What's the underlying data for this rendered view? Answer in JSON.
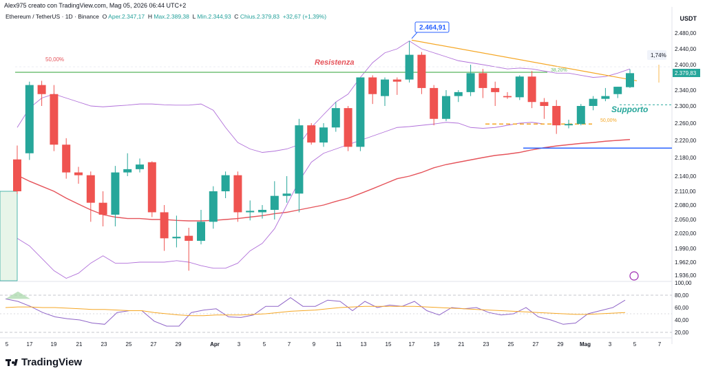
{
  "header": {
    "author_line": "Alex975 creato con TradingView.com, Mag 05, 2026 06:44 UTC+2",
    "symbol": "Ethereum / TetherUS · 1D · Binance",
    "o_label": "O",
    "o_value": "Aper.2.347,17",
    "h_label": "H",
    "h_value": "Max.2.389,38",
    "l_label": "L",
    "l_value": "Min.2.344,93",
    "c_label": "C",
    "c_value": "Chius.2.379,83",
    "change": "+32,67 (+1,39%)"
  },
  "currency": "USDT",
  "footer": {
    "brand": "TradingView"
  },
  "chart_data": {
    "type": "candlestick",
    "x_ticks": [
      "5",
      "17",
      "19",
      "21",
      "23",
      "25",
      "27",
      "29",
      "Apr",
      "3",
      "5",
      "7",
      "9",
      "11",
      "13",
      "15",
      "17",
      "19",
      "21",
      "23",
      "25",
      "27",
      "29",
      "Mag",
      "3",
      "5",
      "7"
    ],
    "y_ticks": [
      "2.480,00",
      "2.440,00",
      "2.400,00",
      "2.340,00",
      "2.300,00",
      "2.260,00",
      "2.220,00",
      "2.180,00",
      "2.140,00",
      "2.110,00",
      "2.080,00",
      "2.050,00",
      "2.020,00",
      "1.990,00",
      "1.962,00",
      "1.936,00"
    ],
    "candles": [
      [
        2176,
        2208,
        2104,
        2110
      ],
      [
        2190,
        2360,
        2175,
        2352
      ],
      [
        2352,
        2362,
        2300,
        2330
      ],
      [
        2330,
        2352,
        2195,
        2210
      ],
      [
        2210,
        2225,
        2135,
        2148
      ],
      [
        2148,
        2160,
        2125,
        2142
      ],
      [
        2142,
        2150,
        2045,
        2085
      ],
      [
        2085,
        2110,
        2035,
        2060
      ],
      [
        2060,
        2162,
        2035,
        2148
      ],
      [
        2148,
        2190,
        2140,
        2155
      ],
      [
        2155,
        2178,
        2148,
        2165
      ],
      [
        2170,
        2172,
        2055,
        2065
      ],
      [
        2065,
        2080,
        1985,
        2010
      ],
      [
        2010,
        2058,
        1992,
        2013
      ],
      [
        2015,
        2032,
        1945,
        2005
      ],
      [
        2005,
        2070,
        1998,
        2045
      ],
      [
        2045,
        2120,
        2030,
        2110
      ],
      [
        2110,
        2150,
        2095,
        2142
      ],
      [
        2142,
        2150,
        2045,
        2065
      ],
      [
        2065,
        2090,
        2048,
        2068
      ],
      [
        2065,
        2080,
        2052,
        2070
      ],
      [
        2070,
        2130,
        2050,
        2100
      ],
      [
        2100,
        2140,
        2085,
        2105
      ],
      [
        2105,
        2270,
        2065,
        2255
      ],
      [
        2255,
        2260,
        2210,
        2215
      ],
      [
        2215,
        2260,
        2205,
        2250
      ],
      [
        2250,
        2310,
        2240,
        2295
      ],
      [
        2295,
        2300,
        2195,
        2205
      ],
      [
        2205,
        2370,
        2195,
        2370
      ],
      [
        2370,
        2375,
        2305,
        2330
      ],
      [
        2325,
        2370,
        2300,
        2365
      ],
      [
        2365,
        2370,
        2328,
        2360
      ],
      [
        2365,
        2460,
        2358,
        2425
      ],
      [
        2425,
        2432,
        2330,
        2345
      ],
      [
        2345,
        2352,
        2255,
        2270
      ],
      [
        2270,
        2340,
        2265,
        2325
      ],
      [
        2325,
        2340,
        2310,
        2335
      ],
      [
        2335,
        2400,
        2325,
        2380
      ],
      [
        2380,
        2390,
        2320,
        2345
      ],
      [
        2345,
        2360,
        2300,
        2335
      ],
      [
        2325,
        2335,
        2318,
        2322
      ],
      [
        2322,
        2375,
        2315,
        2372
      ],
      [
        2372,
        2385,
        2295,
        2310
      ],
      [
        2310,
        2320,
        2270,
        2300
      ],
      [
        2300,
        2315,
        2235,
        2255
      ],
      [
        2255,
        2268,
        2248,
        2258
      ],
      [
        2258,
        2305,
        2255,
        2300
      ],
      [
        2300,
        2325,
        2290,
        2318
      ],
      [
        2318,
        2345,
        2312,
        2325
      ],
      [
        2330,
        2348,
        2320,
        2348
      ],
      [
        2347,
        2389,
        2345,
        2380
      ]
    ],
    "annotations": {
      "resistance_label": "Resistenza",
      "support_label": "Supporto",
      "peak_label": "2.464,91",
      "fib_top_label": "50,00%",
      "fib_mid_label": "38,20%",
      "fib_low_label": "50,00%",
      "price_tag": "2.379,83",
      "change_badge": "1,74%"
    },
    "rsi_ticks": [
      "100,00",
      "80,00",
      "60,00",
      "40,00",
      "20,00"
    ],
    "rsi": [
      74,
      70,
      62,
      52,
      45,
      42,
      40,
      35,
      33,
      52,
      55,
      55,
      38,
      30,
      30,
      52,
      56,
      58,
      45,
      44,
      48,
      62,
      62,
      76,
      62,
      62,
      72,
      70,
      55,
      70,
      60,
      64,
      62,
      70,
      55,
      48,
      60,
      58,
      60,
      52,
      48,
      50,
      60,
      45,
      40,
      33,
      35,
      50,
      55,
      60,
      72
    ],
    "rsi_ma": [
      60,
      61,
      61,
      60,
      60,
      59,
      58,
      57,
      57,
      56,
      55,
      55,
      52,
      50,
      48,
      47,
      47,
      48,
      48,
      48,
      49,
      50,
      52,
      54,
      55,
      56,
      58,
      60,
      61,
      62,
      62,
      62,
      62,
      62,
      61,
      60,
      59,
      58,
      57,
      56,
      55,
      54,
      53,
      52,
      51,
      50,
      49,
      49,
      50,
      51,
      52
    ],
    "legend_position": "none",
    "grid": false
  }
}
